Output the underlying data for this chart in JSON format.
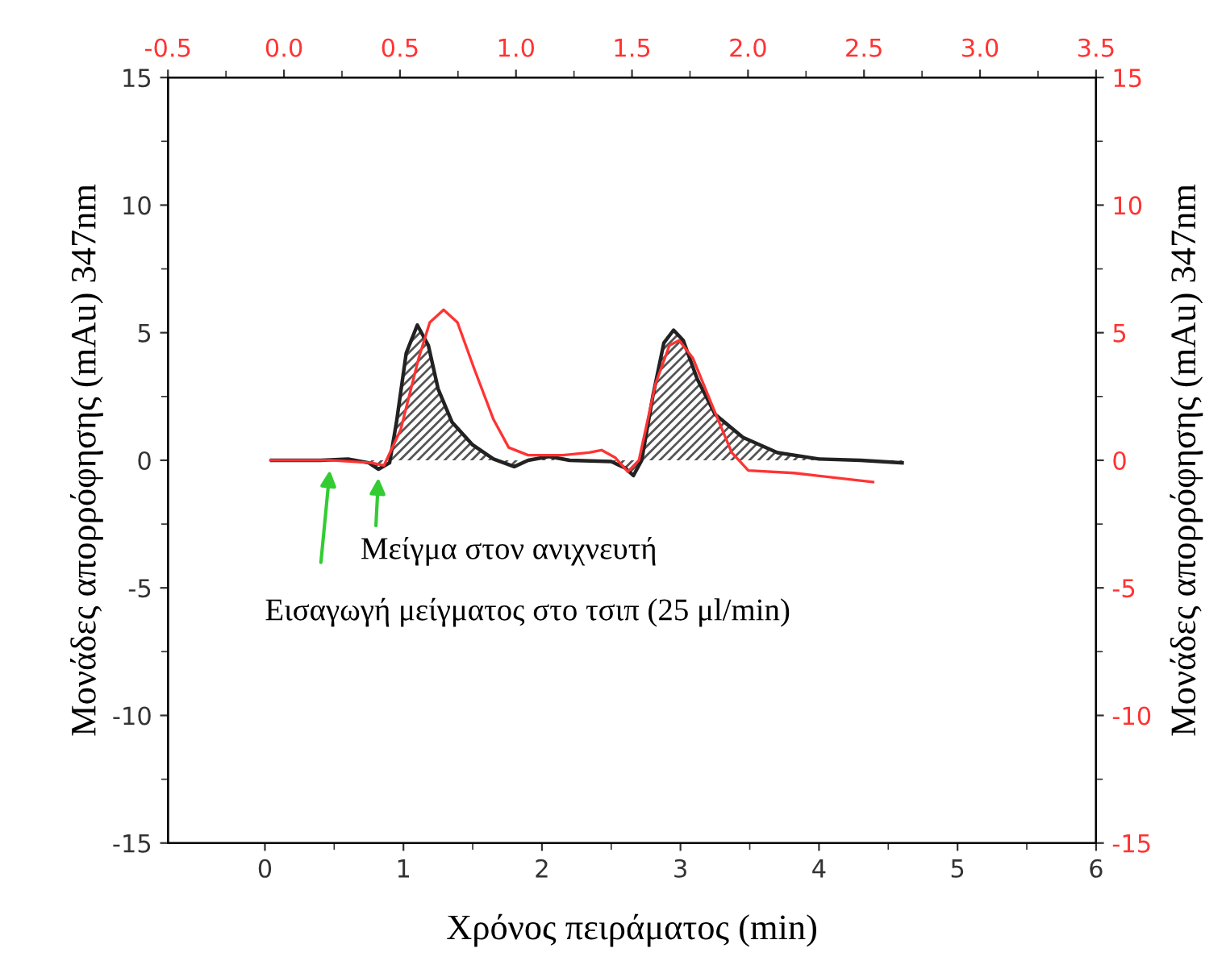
{
  "chart_data": {
    "type": "line",
    "xlabel": "Χρόνος πειράματος (min)",
    "ylabel": "Μονάδες απορρόφησης (mAu) 347nm",
    "y2label": "Μονάδες απορρόφησης (mAu) 347nm",
    "xlim": [
      -0.7,
      6
    ],
    "xticks": [
      0,
      1,
      2,
      3,
      4,
      5,
      6
    ],
    "x2lim": [
      -0.5,
      3.5
    ],
    "x2ticks": [
      -0.5,
      {
        "value": 0,
        "label": "0.0"
      },
      0.5,
      {
        "value": 1,
        "label": "1.0"
      },
      1.5,
      {
        "value": 2,
        "label": "2.0"
      },
      2.5,
      {
        "value": 3,
        "label": "3.0"
      },
      3.5
    ],
    "ylim": [
      -15,
      15
    ],
    "yticks": [
      -15,
      -10,
      -5,
      0,
      5,
      10,
      15
    ],
    "y2lim": [
      -15,
      15
    ],
    "y2ticks": [
      -15,
      -10,
      -5,
      0,
      5,
      10,
      15
    ],
    "grid": false,
    "legend": false,
    "series": [
      {
        "type": "area",
        "color": "#222222",
        "x": [
          0.05,
          0.4,
          0.6,
          0.75,
          0.82,
          0.9,
          0.95,
          1.02,
          1.1,
          1.18,
          1.25,
          1.35,
          1.5,
          1.65,
          1.8,
          1.9,
          2.05,
          2.2,
          2.5,
          2.6,
          2.66,
          2.72,
          2.8,
          2.88,
          2.95,
          3.02,
          3.12,
          3.25,
          3.45,
          3.7,
          4.0,
          4.3,
          4.6
        ],
        "values": [
          0,
          0,
          0.05,
          -0.1,
          -0.35,
          -0.1,
          1.5,
          4.2,
          5.3,
          4.5,
          2.8,
          1.5,
          0.6,
          0.05,
          -0.25,
          0,
          0.15,
          0,
          -0.05,
          -0.3,
          -0.6,
          0,
          2.5,
          4.6,
          5.1,
          4.7,
          3.2,
          1.8,
          0.9,
          0.3,
          0.05,
          0,
          -0.1
        ]
      },
      {
        "axis": "y2",
        "color": "#ff3333",
        "x": [
          0.04,
          0.47,
          0.77,
          0.86,
          0.98,
          1.11,
          1.19,
          1.29,
          1.39,
          1.51,
          1.65,
          1.76,
          1.9,
          2.15,
          2.34,
          2.43,
          2.53,
          2.62,
          2.7,
          2.82,
          2.92,
          2.99,
          3.09,
          3.24,
          3.37,
          3.49,
          3.82,
          4.39
        ],
        "values": [
          0,
          0,
          -0.1,
          -0.2,
          1.2,
          4.0,
          5.4,
          5.9,
          5.4,
          3.6,
          1.6,
          0.5,
          0.2,
          0.2,
          0.3,
          0.4,
          0.1,
          -0.45,
          0,
          3.0,
          4.5,
          4.7,
          4.0,
          2.0,
          0.3,
          -0.4,
          -0.5,
          -0.85
        ]
      }
    ],
    "annotations": [
      {
        "text": "Μείγμα στον ανιχνευτή",
        "x": 0.82,
        "y": -0.6
      },
      {
        "text": "Εισαγωγή μείγματος στο τσιπ (25 μl/min)",
        "x": 0.47,
        "y": -0.3
      }
    ]
  }
}
